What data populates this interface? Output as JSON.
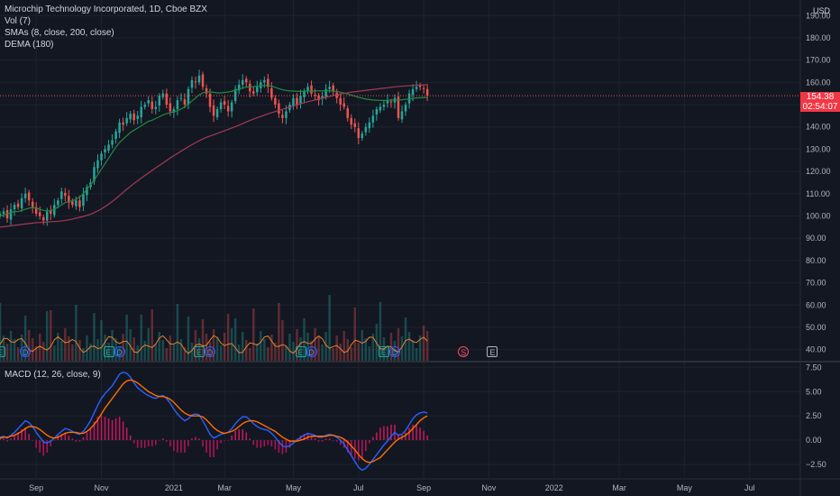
{
  "header": {
    "title": "Microchip Technology Incorporated, 1D, Cboe BZX",
    "indicators": [
      "Vol (7)",
      "SMAs (8, close, 200, close)",
      "DEMA (180)"
    ],
    "currency": "USD"
  },
  "price_tag": {
    "price": "154.38",
    "countdown": "02:54:07"
  },
  "macd_label": "MACD (12, 26, close, 9)",
  "events": [
    {
      "type": "E",
      "x_index": 0
    },
    {
      "type": "D",
      "x_index": 7
    },
    {
      "type": "E",
      "x_index": 30
    },
    {
      "type": "D",
      "x_index": 33
    },
    {
      "type": "E",
      "x_index": 55
    },
    {
      "type": "D",
      "x_index": 58
    },
    {
      "type": "E",
      "x_index": 83
    },
    {
      "type": "D",
      "x_index": 86
    },
    {
      "type": "E",
      "x_index": 106
    },
    {
      "type": "D",
      "x_index": 109
    },
    {
      "type": "S",
      "x_index": 128
    },
    {
      "type": "E",
      "x_index": 136
    }
  ],
  "colors": {
    "background": "#131722",
    "grid": "#1e222d",
    "up": "#26a69a",
    "down": "#ef5350",
    "sma_fast": "#21893f",
    "sma_slow": "#a33a55",
    "dema": "#a33a55",
    "volume_line": "#e6822f",
    "macd": "#2962ff",
    "signal": "#ff6d00",
    "hist": "#c2185b",
    "price_tag": "#f23645"
  },
  "chart_data": [
    {
      "type": "candlestick",
      "title": "Microchip Technology Incorporated, 1D, Cboe BZX",
      "x_tick_labels": [
        "Sep",
        "Nov",
        "2021",
        "Mar",
        "May",
        "Jul",
        "Sep",
        "Nov",
        "2022",
        "Mar",
        "May",
        "Jul"
      ],
      "x_tick_index": [
        10,
        28,
        48,
        62,
        81,
        99,
        117,
        135,
        153,
        171,
        189,
        207
      ],
      "x_range": [
        0,
        221
      ],
      "y_ticks": [
        40,
        50,
        60,
        70,
        80,
        90,
        100,
        110,
        120,
        130,
        140,
        150,
        160,
        170,
        180,
        190
      ],
      "y_range": [
        35,
        197
      ],
      "close": [
        101,
        102,
        99,
        103,
        105,
        104,
        108,
        110,
        107,
        104,
        101,
        100,
        98,
        102,
        101,
        105,
        107,
        111,
        109,
        106,
        105,
        107,
        104,
        110,
        113,
        115,
        122,
        125,
        128,
        130,
        132,
        134,
        138,
        142,
        141,
        144,
        146,
        143,
        145,
        149,
        150,
        152,
        148,
        149,
        154,
        155,
        150,
        147,
        148,
        152,
        153,
        150,
        157,
        161,
        160,
        163,
        158,
        155,
        149,
        145,
        148,
        151,
        150,
        147,
        151,
        157,
        159,
        161,
        160,
        156,
        155,
        158,
        160,
        161,
        158,
        153,
        150,
        146,
        144,
        147,
        150,
        153,
        150,
        154,
        156,
        158,
        155,
        154,
        152,
        154,
        157,
        158,
        156,
        153,
        150,
        149,
        144,
        141,
        140,
        135,
        137,
        140,
        142,
        145,
        148,
        149,
        150,
        152,
        151,
        153,
        144,
        147,
        150,
        155,
        157,
        158,
        158,
        157,
        154
      ],
      "sma_fast": [
        100,
        100.5,
        101,
        101.5,
        102,
        102,
        102.5,
        103,
        103.5,
        103.8,
        103.5,
        103,
        102.5,
        102.3,
        102.4,
        103,
        104,
        105,
        106,
        106.5,
        106.8,
        107.5,
        108.5,
        110,
        112,
        114,
        116,
        118.5,
        121,
        123.5,
        126,
        128.5,
        131,
        133,
        134.5,
        136,
        137.5,
        138.5,
        139.5,
        140.5,
        141.5,
        142.5,
        143,
        143.8,
        144.6,
        145.4,
        146,
        146.4,
        146.8,
        147.3,
        148,
        149,
        150.3,
        151.6,
        153,
        154.4,
        155.3,
        155.7,
        155.8,
        155.5,
        155.3,
        155.3,
        155.5,
        155.7,
        156,
        156.5,
        157,
        157.5,
        157.9,
        158,
        158.1,
        158.3,
        158.5,
        158.6,
        158.6,
        158.3,
        157.8,
        157.2,
        156.7,
        156.4,
        156.2,
        156.1,
        156,
        156,
        156,
        156.1,
        156.1,
        156.2,
        156.2,
        156.2,
        156.2,
        156.2,
        156.1,
        155.9,
        155.6,
        155.2,
        154.8,
        154.3,
        153.8,
        153.3,
        152.9,
        152.5,
        152.3,
        152.1,
        152,
        151.9,
        151.9,
        151.9,
        152,
        152.1,
        152.1,
        152.2,
        152.4,
        152.6,
        152.8,
        153,
        153.1,
        153.2,
        153.2
      ],
      "sma_slow": [
        95,
        95.2,
        95.4,
        95.6,
        95.8,
        96,
        96.2,
        96.4,
        96.6,
        96.8,
        97,
        97.1,
        97.2,
        97.3,
        97.4,
        97.5,
        97.6,
        97.8,
        98,
        98.3,
        98.6,
        99,
        99.4,
        99.8,
        100.3,
        100.8,
        101.5,
        102.3,
        103.2,
        104.2,
        105.3,
        106.5,
        107.8,
        109.2,
        110.6,
        112,
        113.3,
        114.6,
        115.8,
        117,
        118.2,
        119.3,
        120.5,
        121.6,
        122.7,
        123.8,
        124.9,
        126,
        127.1,
        128.1,
        129.1,
        130.1,
        131.1,
        132,
        132.9,
        133.8,
        134.6,
        135.3,
        135.9,
        136.5,
        137.1,
        137.7,
        138.3,
        138.9,
        139.5,
        140.1,
        140.8,
        141.5,
        142.2,
        142.9,
        143.5,
        144.1,
        144.7,
        145.3,
        145.9,
        146.4,
        146.9,
        147.4,
        147.9,
        148.4,
        148.9,
        149.4,
        149.9,
        150.4,
        150.9,
        151.3,
        151.7,
        152.1,
        152.5,
        152.9,
        153.3,
        153.7,
        154.1,
        154.4,
        154.7,
        155,
        155.3,
        155.6,
        155.8,
        156,
        156.2,
        156.4,
        156.6,
        156.8,
        157,
        157.2,
        157.4,
        157.6,
        157.8,
        158,
        158.2,
        158.3,
        158.4,
        158.5,
        158.6,
        158.7,
        158.8,
        158.9,
        159
      ]
    },
    {
      "type": "line",
      "title": "MACD (12, 26, close, 9)",
      "y_ticks": [
        -2.5,
        0,
        2.5,
        5,
        7.5
      ],
      "y_range": [
        -3.9,
        8.0
      ],
      "macd": [
        0.3,
        0.4,
        0.2,
        0.5,
        0.8,
        1.2,
        1.6,
        2,
        1.8,
        1.4,
        0.8,
        0.3,
        -0.2,
        -0.3,
        -0.1,
        0.2,
        0.6,
        0.9,
        1.2,
        1.1,
        0.9,
        0.7,
        0.6,
        0.9,
        1.4,
        2,
        2.8,
        3.6,
        4.3,
        4.8,
        5.2,
        5.6,
        6.2,
        6.8,
        7,
        6.9,
        6.5,
        5.9,
        5.4,
        5.1,
        4.8,
        4.6,
        4.4,
        4.3,
        4.5,
        4.6,
        4.3,
        3.8,
        3.2,
        2.7,
        2.3,
        2,
        2.2,
        2.6,
        2.7,
        2.6,
        2,
        1.3,
        0.6,
        0.2,
        0.4,
        0.6,
        0.7,
        0.8,
        1.2,
        1.7,
        2.1,
        2.4,
        2.4,
        2.1,
        1.7,
        1.4,
        1.2,
        1.1,
        1,
        0.7,
        0.3,
        -0.2,
        -0.6,
        -0.7,
        -0.6,
        -0.3,
        0,
        0.3,
        0.5,
        0.7,
        0.6,
        0.5,
        0.3,
        0.3,
        0.5,
        0.6,
        0.5,
        0.3,
        0,
        -0.4,
        -1,
        -1.6,
        -2.2,
        -2.8,
        -3.1,
        -2.9,
        -2.5,
        -2,
        -1.5,
        -1,
        -0.5,
        -0.1,
        0.4,
        0.8,
        0.5,
        0.6,
        1,
        1.6,
        2.2,
        2.6,
        2.8,
        2.9,
        2.8
      ],
      "signal": [
        0.2,
        0.3,
        0.3,
        0.4,
        0.5,
        0.7,
        0.9,
        1.2,
        1.4,
        1.4,
        1.3,
        1.1,
        0.8,
        0.5,
        0.3,
        0.2,
        0.3,
        0.5,
        0.7,
        0.8,
        0.8,
        0.8,
        0.7,
        0.7,
        0.9,
        1.2,
        1.6,
        2.1,
        2.7,
        3.3,
        3.8,
        4.3,
        4.8,
        5.3,
        5.8,
        6.1,
        6.2,
        6.1,
        5.9,
        5.6,
        5.3,
        5,
        4.8,
        4.6,
        4.5,
        4.5,
        4.4,
        4.2,
        3.9,
        3.5,
        3.1,
        2.8,
        2.6,
        2.5,
        2.5,
        2.5,
        2.4,
        2.1,
        1.7,
        1.3,
        1,
        0.8,
        0.7,
        0.8,
        0.9,
        1.1,
        1.4,
        1.7,
        1.9,
        2,
        2,
        1.9,
        1.7,
        1.5,
        1.3,
        1.1,
        0.9,
        0.6,
        0.3,
        0.1,
        -0.1,
        -0.1,
        -0.1,
        0,
        0.1,
        0.3,
        0.4,
        0.4,
        0.4,
        0.4,
        0.4,
        0.5,
        0.5,
        0.4,
        0.3,
        0.1,
        -0.2,
        -0.6,
        -1,
        -1.5,
        -1.9,
        -2.2,
        -2.3,
        -2.2,
        -2,
        -1.8,
        -1.4,
        -1,
        -0.6,
        -0.2,
        0.1,
        0.3,
        0.5,
        0.8,
        1.2,
        1.6,
        2,
        2.3,
        2.5
      ]
    }
  ]
}
